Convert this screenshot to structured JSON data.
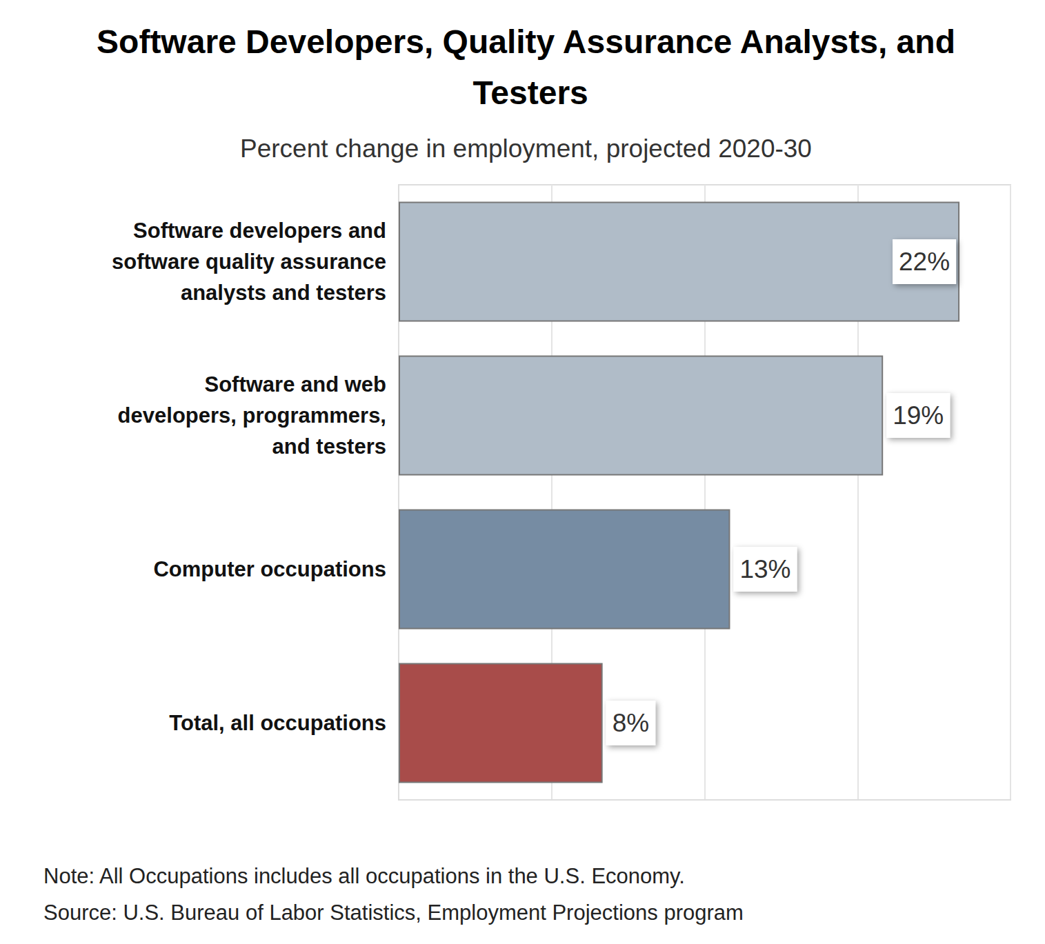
{
  "chart_data": {
    "type": "bar",
    "orientation": "horizontal",
    "title": "Software Developers, Quality Assurance Analysts, and Testers",
    "subtitle": "Percent change in employment, projected 2020-30",
    "categories": [
      "Software developers and\nsoftware quality assurance\nanalysts and testers",
      "Software and web\ndevelopers, programmers,\nand testers",
      "Computer occupations",
      "Total, all occupations"
    ],
    "values": [
      22,
      19,
      13,
      8
    ],
    "value_labels": [
      "22%",
      "19%",
      "13%",
      "8%"
    ],
    "colors": [
      "#b0bcc8",
      "#b0bcc8",
      "#768ca3",
      "#a84c4a"
    ],
    "xlim": [
      0,
      24
    ],
    "xticks": [
      0,
      6,
      12,
      18,
      24
    ],
    "grid": true,
    "data_labels": true,
    "tick_labels": "y",
    "annotations": [
      "Note: All Occupations includes all occupations in the U.S. Economy.",
      "Source: U.S. Bureau of Labor Statistics, Employment Projections program"
    ]
  }
}
